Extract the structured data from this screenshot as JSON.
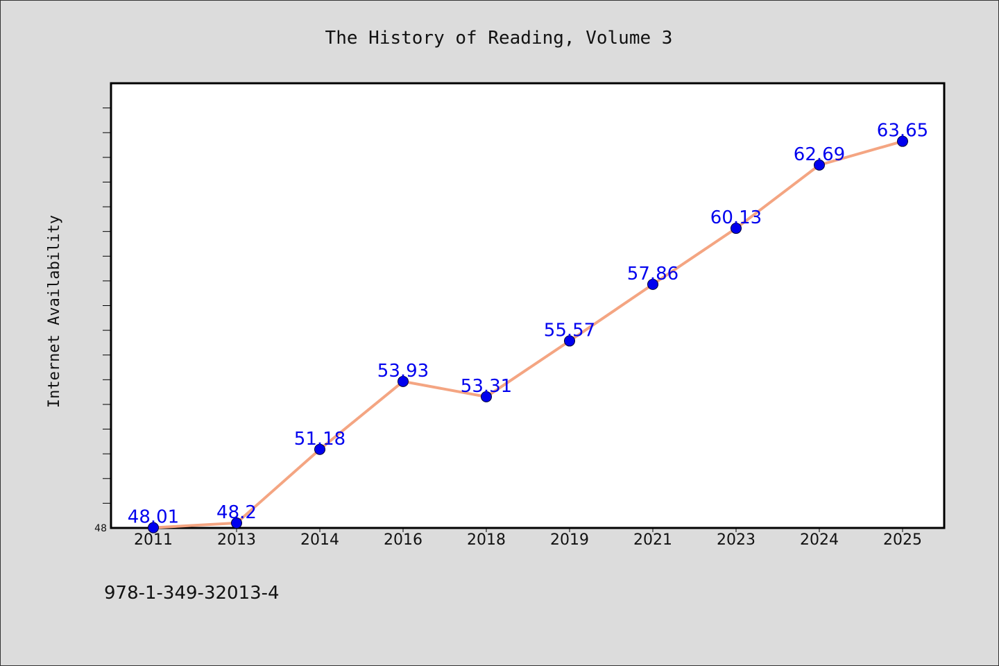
{
  "chart_data": {
    "type": "line",
    "title": "The History of Reading, Volume 3",
    "xlabel": "",
    "ylabel": "Internet Availability",
    "categories": [
      "2011",
      "2013",
      "2014",
      "2016",
      "2018",
      "2019",
      "2021",
      "2023",
      "2024",
      "2025"
    ],
    "series": [
      {
        "values": [
          48.01,
          48.2,
          51.18,
          53.93,
          53.31,
          55.57,
          57.86,
          60.13,
          62.69,
          63.65
        ],
        "labels": [
          "48.01",
          "48.2",
          "51.18",
          "53.93",
          "53.31",
          "55.57",
          "57.86",
          "60.13",
          "62.69",
          "63.65"
        ]
      }
    ],
    "ylim": [
      48,
      66
    ],
    "yticks_labeled": [
      "48"
    ],
    "grid": false,
    "colors": {
      "line": "#f4a582",
      "marker": "#0000ee",
      "label": "#0000ee",
      "background": "#dcdcdc",
      "plot_background": "#ffffff"
    }
  },
  "footer": {
    "isbn": "978-1-349-32013-4"
  }
}
